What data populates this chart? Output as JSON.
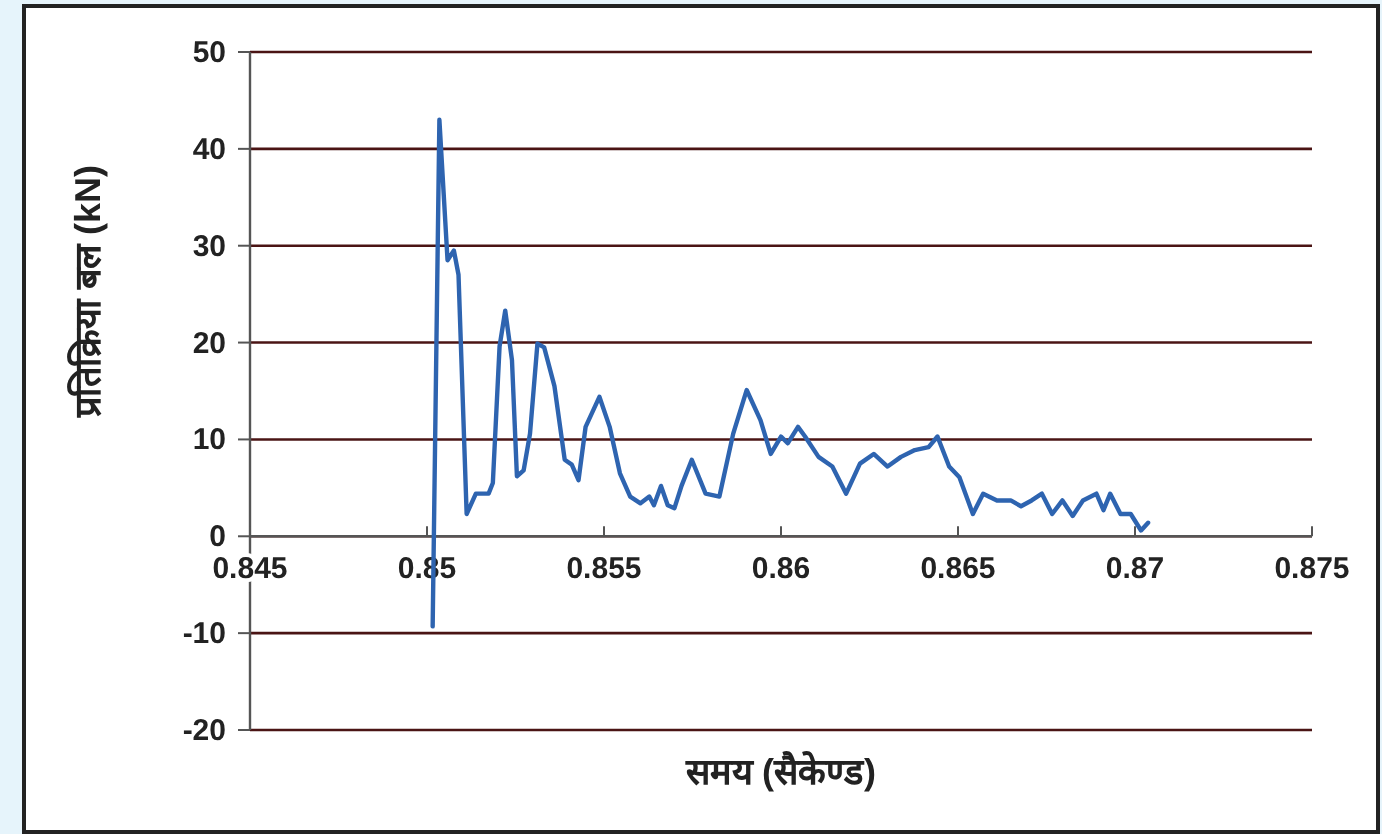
{
  "chart_data": {
    "type": "line",
    "xlabel": "समय (सैकेण्ड)",
    "ylabel": "प्रतिक्रिया बल (kN)",
    "xlim": [
      0.845,
      0.875
    ],
    "xticks": [
      0.845,
      0.85,
      0.855,
      0.86,
      0.865,
      0.87,
      0.875
    ],
    "ylim": [
      -20,
      50
    ],
    "yticks": [
      -20,
      -10,
      0,
      10,
      20,
      30,
      40,
      50
    ],
    "grid": "y",
    "marker": "none",
    "line_style": "solid",
    "series": [
      {
        "color": "#2e64b0",
        "x": [
          0.85016,
          0.85035,
          0.85058,
          0.85076,
          0.85089,
          0.85112,
          0.85138,
          0.85174,
          0.85186,
          0.85205,
          0.85221,
          0.8524,
          0.85254,
          0.85273,
          0.85291,
          0.85312,
          0.85331,
          0.8536,
          0.85389,
          0.85409,
          0.85428,
          0.85448,
          0.85487,
          0.85516,
          0.85545,
          0.85574,
          0.85603,
          0.85628,
          0.85641,
          0.85661,
          0.8568,
          0.85699,
          0.85719,
          0.85748,
          0.85787,
          0.85826,
          0.85865,
          0.85903,
          0.85942,
          0.85971,
          0.86,
          0.86019,
          0.86048,
          0.86068,
          0.86106,
          0.86145,
          0.86184,
          0.86223,
          0.86262,
          0.86301,
          0.86339,
          0.86378,
          0.86417,
          0.86442,
          0.86475,
          0.86504,
          0.86542,
          0.86571,
          0.8661,
          0.86649,
          0.86678,
          0.86708,
          0.86737,
          0.86766,
          0.86795,
          0.86824,
          0.86853,
          0.86891,
          0.86911,
          0.8693,
          0.86959,
          0.86988,
          0.87017,
          0.87037
        ],
        "values": [
          -9.3,
          43,
          28.5,
          29.5,
          27,
          2.3,
          4.4,
          4.4,
          5.5,
          19.6,
          23.3,
          18.2,
          6.2,
          6.8,
          10.6,
          19.9,
          19.5,
          15.5,
          7.9,
          7.4,
          5.8,
          11.3,
          14.4,
          11.3,
          6.5,
          4.1,
          3.4,
          4.1,
          3.2,
          5.2,
          3.2,
          2.9,
          5.2,
          7.9,
          4.4,
          4.1,
          10.6,
          15.1,
          12,
          8.5,
          10.3,
          9.6,
          11.3,
          10.3,
          8.2,
          7.2,
          4.4,
          7.5,
          8.5,
          7.2,
          8.2,
          8.9,
          9.2,
          10.3,
          7.2,
          6.1,
          2.3,
          4.4,
          3.7,
          3.7,
          3.1,
          3.7,
          4.4,
          2.3,
          3.7,
          2.1,
          3.7,
          4.4,
          2.7,
          4.4,
          2.3,
          2.3,
          0.6,
          1.4
        ]
      }
    ]
  }
}
